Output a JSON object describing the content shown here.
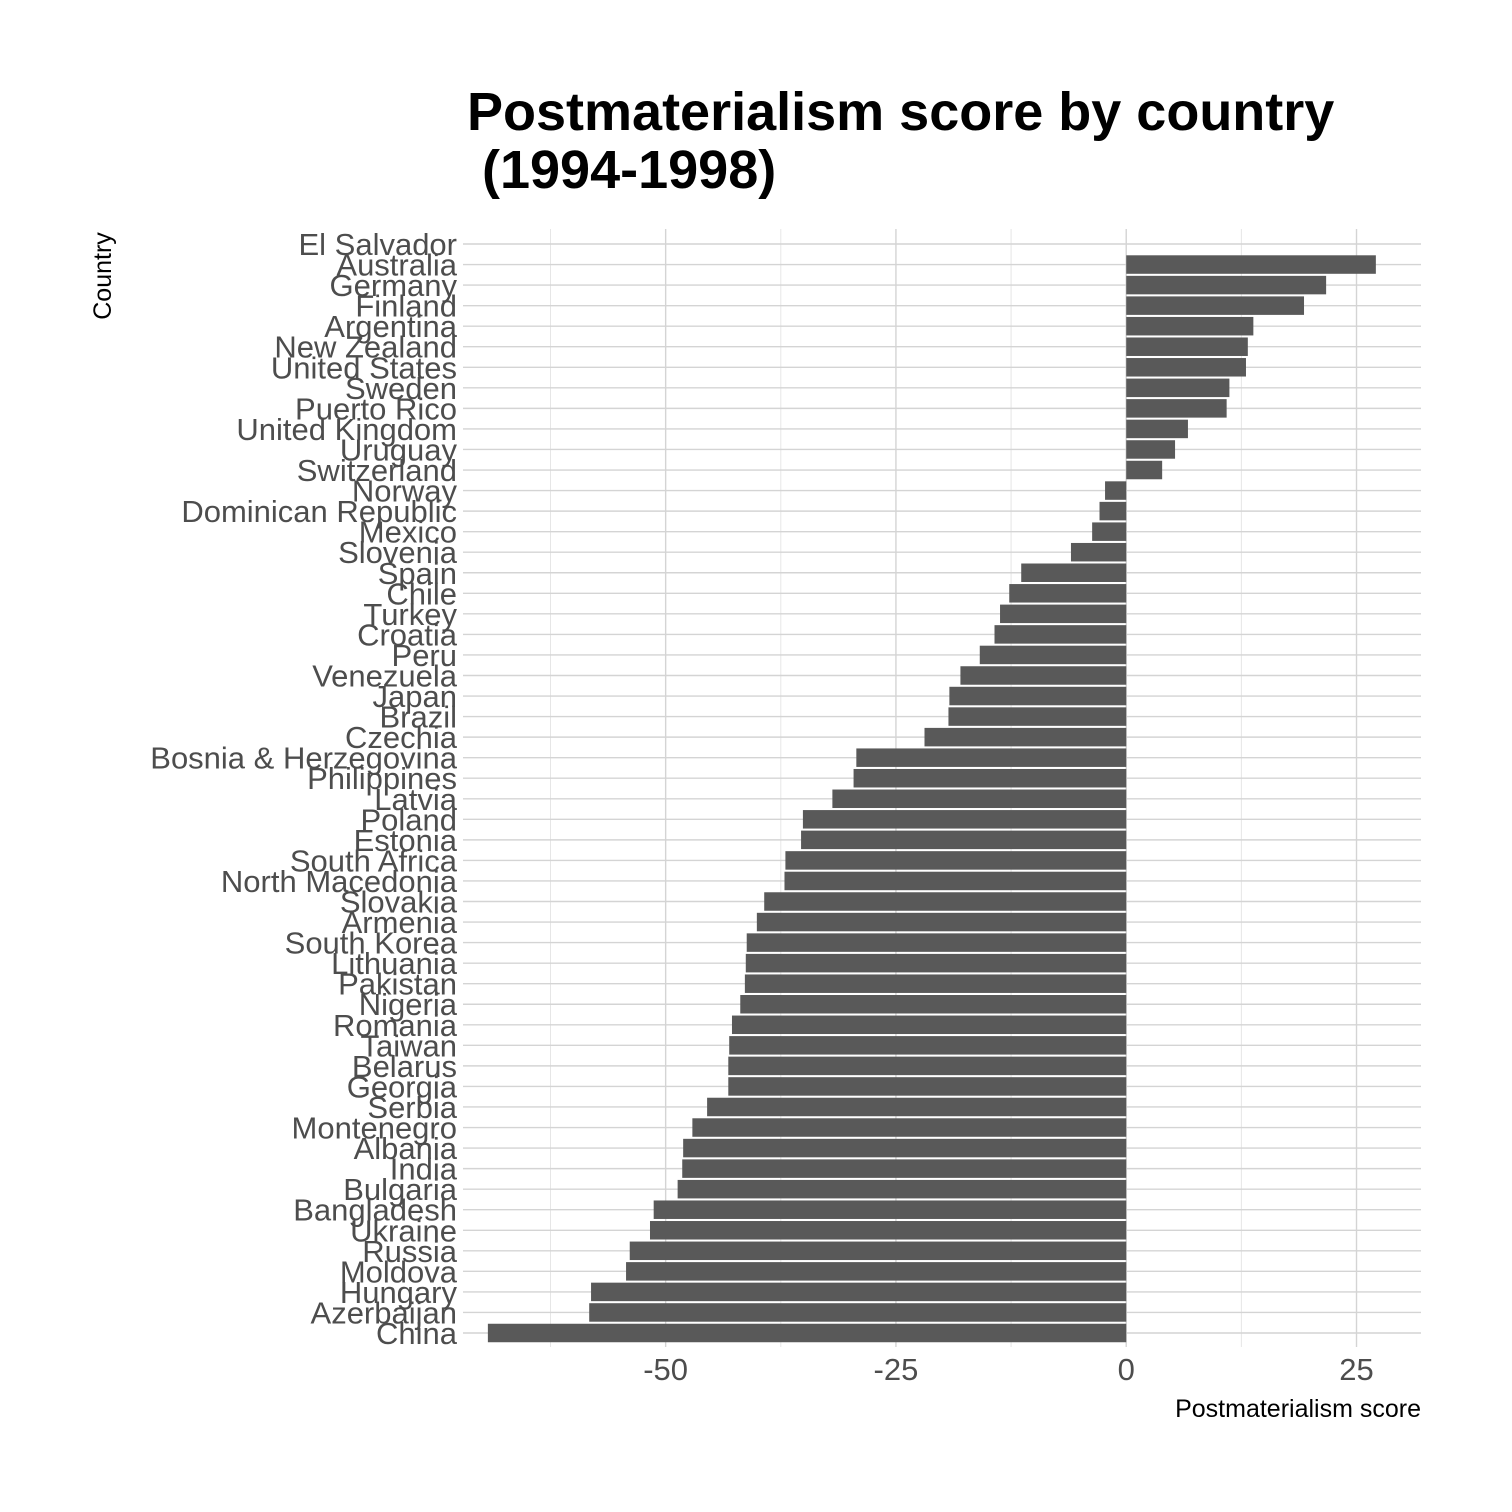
{
  "chart_data": {
    "type": "bar",
    "orientation": "horizontal",
    "title_lines": [
      "Postmaterialism score by country",
      " (1994-1998)"
    ],
    "xlabel": "Postmaterialism score",
    "ylabel": "Country",
    "xlim": [
      -72,
      32
    ],
    "xticks": [
      -50,
      -25,
      0,
      25
    ],
    "xtick_labels": [
      "-50",
      "-25",
      "0",
      "25"
    ],
    "bar_color": "#595959",
    "grid": true,
    "legend": "none",
    "categories": [
      "El Salvador",
      "Australia",
      "Germany",
      "Finland",
      "Argentina",
      "New Zealand",
      "United States",
      "Sweden",
      "Puerto Rico",
      "United Kingdom",
      "Uruguay",
      "Switzerland",
      "Norway",
      "Dominican Republic",
      "Mexico",
      "Slovenia",
      "Spain",
      "Chile",
      "Turkey",
      "Croatia",
      "Peru",
      "Venezuela",
      "Japan",
      "Brazil",
      "Czechia",
      "Bosnia & Herzegovina",
      "Philippines",
      "Latvia",
      "Poland",
      "Estonia",
      "South Africa",
      "North Macedonia",
      "Slovakia",
      "Armenia",
      "South Korea",
      "Lithuania",
      "Pakistan",
      "Nigeria",
      "Romania",
      "Taiwan",
      "Belarus",
      "Georgia",
      "Serbia",
      "Montenegro",
      "Albania",
      "India",
      "Bulgaria",
      "Bangladesh",
      "Ukraine",
      "Russia",
      "Moldova",
      "Hungary",
      "Azerbaijan",
      "China"
    ],
    "values": [
      null,
      27.1,
      21.7,
      19.3,
      13.8,
      13.2,
      13.0,
      11.2,
      10.9,
      6.7,
      5.3,
      3.9,
      -2.3,
      -2.9,
      -3.7,
      -6.0,
      -11.4,
      -12.7,
      -13.7,
      -14.3,
      -15.9,
      -18.0,
      -19.2,
      -19.3,
      -21.9,
      -29.3,
      -29.6,
      -31.9,
      -35.1,
      -35.3,
      -37.0,
      -37.1,
      -39.3,
      -40.1,
      -41.2,
      -41.3,
      -41.4,
      -41.9,
      -42.8,
      -43.1,
      -43.2,
      -43.2,
      -45.5,
      -47.1,
      -48.1,
      -48.2,
      -48.7,
      -51.3,
      -51.7,
      -53.9,
      -54.3,
      -58.1,
      -58.3,
      -69.3
    ]
  }
}
